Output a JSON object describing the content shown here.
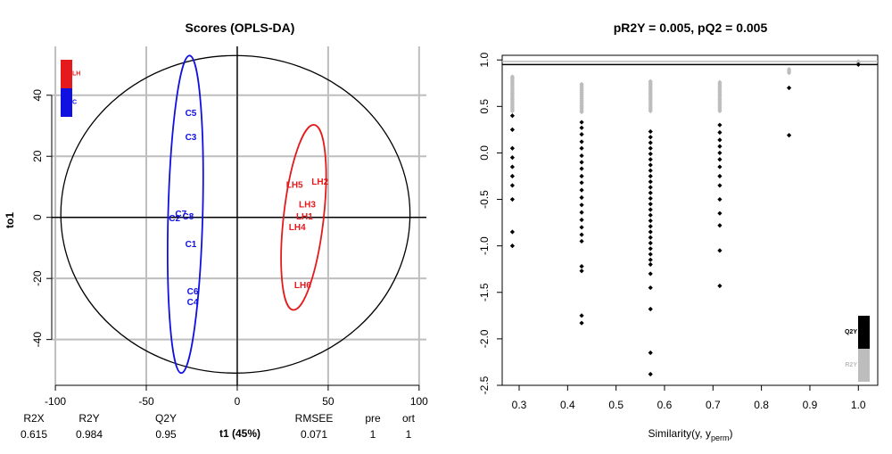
{
  "colors": {
    "lh": "#e41a1c",
    "c": "#1010e0",
    "grid": "#bebebe",
    "q2": "#000000",
    "r2": "#bdbdbd"
  },
  "chart_data": [
    {
      "type": "scatter",
      "title": "Scores (OPLS-DA)",
      "xlabel": "t1 (45%)",
      "ylabel": "to1",
      "xlim": [
        -102,
        104
      ],
      "ylim": [
        -55,
        56
      ],
      "xticks": [
        -100,
        -50,
        0,
        50,
        100
      ],
      "yticks": [
        -40,
        -20,
        0,
        20,
        40
      ],
      "grid": true,
      "legend": "top-left",
      "legend_entries": [
        {
          "label": "LH",
          "color": "#e41a1c"
        },
        {
          "label": "C",
          "color": "#1010e0"
        }
      ],
      "series": [
        {
          "name": "LH",
          "color": "#e41a1c",
          "points": [
            {
              "label": "LH2",
              "x": 45.5,
              "y": 11.5
            },
            {
              "label": "LH5",
              "x": 31.5,
              "y": 10.5
            },
            {
              "label": "LH3",
              "x": 38.5,
              "y": 4
            },
            {
              "label": "LH1",
              "x": 37,
              "y": 0
            },
            {
              "label": "LH4",
              "x": 33,
              "y": -3.5
            },
            {
              "label": "LH6",
              "x": 36,
              "y": -22.5
            }
          ],
          "ellipse": {
            "cx": 36.5,
            "cy": 0,
            "rx": 11,
            "ry": 30.5,
            "tilt_deg": 6.5
          }
        },
        {
          "name": "C",
          "color": "#1010e0",
          "points": [
            {
              "label": "C5",
              "x": -25.5,
              "y": 34
            },
            {
              "label": "C3",
              "x": -25.5,
              "y": 26
            },
            {
              "label": "C7",
              "x": -31,
              "y": 1
            },
            {
              "label": "C2",
              "x": -34.5,
              "y": -0.5
            },
            {
              "label": "C8",
              "x": -27,
              "y": 0
            },
            {
              "label": "C1",
              "x": -25.5,
              "y": -9
            },
            {
              "label": "C6",
              "x": -24.5,
              "y": -24.5
            },
            {
              "label": "C4",
              "x": -24.5,
              "y": -28
            }
          ],
          "ellipse": {
            "cx": -28.5,
            "cy": 1,
            "rx": 9.5,
            "ry": 52,
            "tilt_deg": 1.5
          }
        }
      ],
      "outer_ellipse": {
        "cx": -1,
        "cy": 1,
        "rx": 96,
        "ry": 52
      },
      "summary_table": {
        "headers": [
          "R2X",
          "R2Y",
          "Q2Y",
          "RMSEE",
          "pre",
          "ort"
        ],
        "values": [
          "0.615",
          "0.984",
          "0.95",
          "0.071",
          "1",
          "1"
        ]
      }
    },
    {
      "type": "scatter",
      "title": "pR2Y = 0.005, pQ2 = 0.005",
      "xlabel_main": "Similarity(y, y",
      "xlabel_sub": "perm",
      "xlabel_close": ")",
      "xlim": [
        0.265,
        1.04
      ],
      "ylim": [
        -2.5,
        1.05
      ],
      "xticks": [
        0.3,
        0.4,
        0.5,
        0.6,
        0.7,
        0.8,
        0.9,
        1.0
      ],
      "xtick_labels": [
        "0.3",
        "0.4",
        "0.5",
        "0.6",
        "0.7",
        "0.8",
        "0.9",
        "1.0"
      ],
      "yticks": [
        -2.5,
        -2.0,
        -1.5,
        -1.0,
        -0.5,
        0.0,
        0.5,
        1.0
      ],
      "ytick_labels": [
        "-2.5",
        "-2.0",
        "-1.5",
        "-1.0",
        "-0.5",
        "0.0",
        "0.5",
        "1.0"
      ],
      "reference_lines": {
        "R2Y": 0.984,
        "Q2Y": 0.95
      },
      "legend": "bottom-right",
      "legend_entries": [
        {
          "label": "Q2Y",
          "color": "#000000"
        },
        {
          "label": "R2Y",
          "color": "#bdbdbd"
        }
      ],
      "series": [
        {
          "name": "R2Y",
          "color": "#bdbdbd",
          "groups": [
            {
              "x": 0.286,
              "min": 0.45,
              "max": 0.82
            },
            {
              "x": 0.429,
              "min": 0.44,
              "max": 0.74
            },
            {
              "x": 0.571,
              "min": 0.45,
              "max": 0.77
            },
            {
              "x": 0.714,
              "min": 0.45,
              "max": 0.76
            },
            {
              "x": 0.857,
              "min": 0.86,
              "max": 0.9
            },
            {
              "x": 1.0,
              "min": 0.97,
              "max": 0.984
            }
          ]
        },
        {
          "name": "Q2Y",
          "color": "#000000",
          "points": [
            [
              0.286,
              0.4
            ],
            [
              0.286,
              0.25
            ],
            [
              0.286,
              0.05
            ],
            [
              0.286,
              -0.05
            ],
            [
              0.286,
              -0.15
            ],
            [
              0.286,
              -0.25
            ],
            [
              0.286,
              -0.35
            ],
            [
              0.286,
              -0.5
            ],
            [
              0.286,
              -0.85
            ],
            [
              0.286,
              -1.0
            ],
            [
              0.429,
              0.33
            ],
            [
              0.429,
              0.27
            ],
            [
              0.429,
              0.2
            ],
            [
              0.429,
              0.12
            ],
            [
              0.429,
              0.05
            ],
            [
              0.429,
              -0.03
            ],
            [
              0.429,
              -0.1
            ],
            [
              0.429,
              -0.17
            ],
            [
              0.429,
              -0.25
            ],
            [
              0.429,
              -0.32
            ],
            [
              0.429,
              -0.4
            ],
            [
              0.429,
              -0.48
            ],
            [
              0.429,
              -0.56
            ],
            [
              0.429,
              -0.64
            ],
            [
              0.429,
              -0.72
            ],
            [
              0.429,
              -0.8
            ],
            [
              0.429,
              -0.88
            ],
            [
              0.429,
              -0.95
            ],
            [
              0.429,
              -1.22
            ],
            [
              0.429,
              -1.27
            ],
            [
              0.429,
              -1.75
            ],
            [
              0.429,
              -1.83
            ],
            [
              0.571,
              0.23
            ],
            [
              0.571,
              0.17
            ],
            [
              0.571,
              0.11
            ],
            [
              0.571,
              0.05
            ],
            [
              0.571,
              -0.01
            ],
            [
              0.571,
              -0.07
            ],
            [
              0.571,
              -0.13
            ],
            [
              0.571,
              -0.19
            ],
            [
              0.571,
              -0.25
            ],
            [
              0.571,
              -0.31
            ],
            [
              0.571,
              -0.37
            ],
            [
              0.571,
              -0.43
            ],
            [
              0.571,
              -0.49
            ],
            [
              0.571,
              -0.55
            ],
            [
              0.571,
              -0.61
            ],
            [
              0.571,
              -0.67
            ],
            [
              0.571,
              -0.73
            ],
            [
              0.571,
              -0.79
            ],
            [
              0.571,
              -0.85
            ],
            [
              0.571,
              -0.91
            ],
            [
              0.571,
              -0.97
            ],
            [
              0.571,
              -1.03
            ],
            [
              0.571,
              -1.09
            ],
            [
              0.571,
              -1.15
            ],
            [
              0.571,
              -1.2
            ],
            [
              0.571,
              -1.3
            ],
            [
              0.571,
              -1.45
            ],
            [
              0.571,
              -1.68
            ],
            [
              0.571,
              -2.15
            ],
            [
              0.571,
              -2.38
            ],
            [
              0.714,
              0.3
            ],
            [
              0.714,
              0.22
            ],
            [
              0.714,
              0.14
            ],
            [
              0.714,
              0.07
            ],
            [
              0.714,
              0.0
            ],
            [
              0.714,
              -0.07
            ],
            [
              0.714,
              -0.15
            ],
            [
              0.714,
              -0.25
            ],
            [
              0.714,
              -0.35
            ],
            [
              0.714,
              -0.5
            ],
            [
              0.714,
              -0.65
            ],
            [
              0.714,
              -0.78
            ],
            [
              0.714,
              -1.05
            ],
            [
              0.714,
              -1.43
            ],
            [
              0.857,
              0.7
            ],
            [
              0.857,
              0.19
            ],
            [
              1.0,
              0.95
            ]
          ]
        }
      ]
    }
  ]
}
